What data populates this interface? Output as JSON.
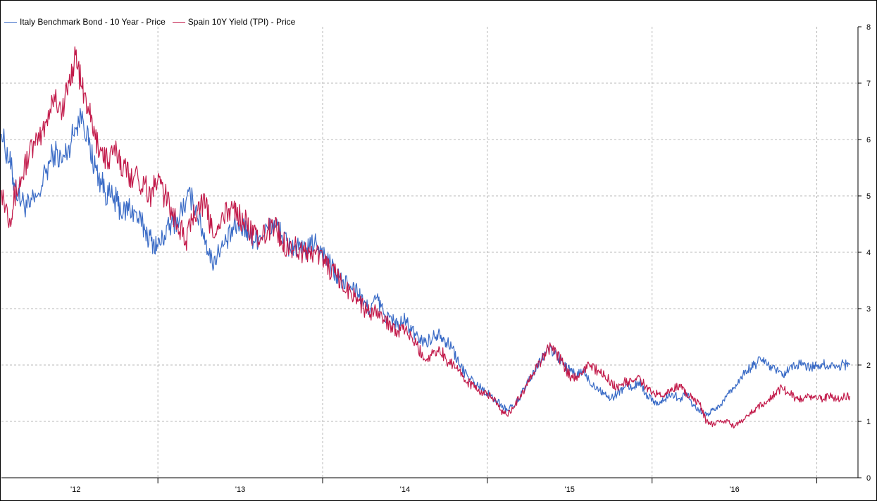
{
  "legend": {
    "italy_label": "Italy Benchmark Bond - 10 Year - Price",
    "spain_label": "Spain 10Y Yield (TPI) - Price"
  },
  "chart_data": {
    "type": "line",
    "title": "",
    "xlabel": "",
    "ylabel": "",
    "ylim": [
      0,
      8
    ],
    "yticks": [
      0,
      1,
      2,
      3,
      4,
      5,
      6,
      7,
      8
    ],
    "xlim": [
      2011.55,
      2016.75
    ],
    "xtick_labels": [
      "'12",
      "'13",
      "'14",
      "'15",
      "'16"
    ],
    "xtick_positions": [
      2012,
      2013,
      2014,
      2015,
      2016
    ],
    "grid": true,
    "legend_position": "top-left",
    "y_axis_side": "right",
    "series": [
      {
        "name": "Italy Benchmark Bond - 10 Year - Price",
        "color": "#3a6bc6",
        "x": [
          2011.55,
          2011.6,
          2011.63,
          2011.67,
          2011.72,
          2011.77,
          2011.82,
          2011.87,
          2011.92,
          2011.96,
          2012.0,
          2012.04,
          2012.08,
          2012.12,
          2012.16,
          2012.2,
          2012.25,
          2012.29,
          2012.33,
          2012.38,
          2012.42,
          2012.46,
          2012.5,
          2012.54,
          2012.58,
          2012.62,
          2012.67,
          2012.71,
          2012.75,
          2012.79,
          2012.83,
          2012.87,
          2012.92,
          2012.96,
          2013.0,
          2013.04,
          2013.08,
          2013.12,
          2013.17,
          2013.21,
          2013.25,
          2013.29,
          2013.33,
          2013.38,
          2013.42,
          2013.46,
          2013.5,
          2013.54,
          2013.58,
          2013.62,
          2013.67,
          2013.71,
          2013.75,
          2013.79,
          2013.83,
          2013.87,
          2013.92,
          2013.96,
          2014.0,
          2014.04,
          2014.08,
          2014.12,
          2014.17,
          2014.21,
          2014.25,
          2014.29,
          2014.33,
          2014.38,
          2014.42,
          2014.46,
          2014.5,
          2014.54,
          2014.58,
          2014.62,
          2014.67,
          2014.71,
          2014.75,
          2014.79,
          2014.83,
          2014.87,
          2014.92,
          2014.96,
          2015.0,
          2015.04,
          2015.08,
          2015.12,
          2015.17,
          2015.21,
          2015.25,
          2015.29,
          2015.33,
          2015.38,
          2015.42,
          2015.46,
          2015.5,
          2015.54,
          2015.58,
          2015.62,
          2015.67,
          2015.71,
          2015.75,
          2015.79,
          2015.83,
          2015.87,
          2015.92,
          2015.96,
          2016.0,
          2016.04,
          2016.08,
          2016.12,
          2016.17,
          2016.21,
          2016.25,
          2016.29,
          2016.33,
          2016.38,
          2016.42,
          2016.46,
          2016.5,
          2016.54,
          2016.58,
          2016.62,
          2016.67,
          2016.7
        ],
        "values": [
          6.1,
          5.6,
          5.2,
          4.9,
          4.8,
          5.0,
          5.4,
          5.8,
          5.6,
          5.9,
          6.2,
          6.5,
          5.9,
          5.5,
          5.2,
          5.0,
          4.9,
          4.7,
          4.8,
          4.6,
          4.4,
          4.2,
          4.1,
          4.3,
          4.5,
          4.6,
          4.9,
          5.0,
          4.6,
          4.2,
          3.8,
          4.0,
          4.2,
          4.4,
          4.5,
          4.4,
          4.2,
          4.3,
          4.4,
          4.5,
          4.3,
          4.1,
          4.1,
          4.0,
          4.1,
          4.2,
          4.0,
          3.8,
          3.6,
          3.5,
          3.4,
          3.3,
          3.1,
          3.0,
          3.2,
          2.9,
          2.8,
          2.7,
          2.8,
          2.6,
          2.5,
          2.4,
          2.5,
          2.6,
          2.4,
          2.3,
          2.0,
          1.8,
          1.7,
          1.6,
          1.5,
          1.4,
          1.3,
          1.2,
          1.3,
          1.5,
          1.7,
          1.9,
          2.1,
          2.3,
          2.2,
          2.0,
          1.9,
          1.8,
          1.9,
          1.7,
          1.6,
          1.5,
          1.4,
          1.5,
          1.6,
          1.6,
          1.7,
          1.5,
          1.4,
          1.3,
          1.4,
          1.5,
          1.4,
          1.5,
          1.3,
          1.2,
          1.1,
          1.2,
          1.3,
          1.5,
          1.6,
          1.8,
          1.9,
          2.0,
          2.1,
          2.0,
          1.9,
          1.8,
          1.9,
          2.0,
          2.0,
          1.95,
          2.0,
          2.0,
          2.0,
          2.0,
          2.0,
          2.0
        ],
        "style": "jagged"
      },
      {
        "name": "Spain 10Y Yield (TPI) - Price",
        "color": "#c21a4a",
        "x": [
          2011.55,
          2011.6,
          2011.63,
          2011.67,
          2011.72,
          2011.77,
          2011.82,
          2011.87,
          2011.92,
          2011.96,
          2012.0,
          2012.04,
          2012.08,
          2012.12,
          2012.16,
          2012.2,
          2012.25,
          2012.29,
          2012.33,
          2012.38,
          2012.42,
          2012.46,
          2012.5,
          2012.54,
          2012.58,
          2012.62,
          2012.67,
          2012.71,
          2012.75,
          2012.79,
          2012.83,
          2012.87,
          2012.92,
          2012.96,
          2013.0,
          2013.04,
          2013.08,
          2013.12,
          2013.17,
          2013.21,
          2013.25,
          2013.29,
          2013.33,
          2013.38,
          2013.42,
          2013.46,
          2013.5,
          2013.54,
          2013.58,
          2013.62,
          2013.67,
          2013.71,
          2013.75,
          2013.79,
          2013.83,
          2013.87,
          2013.92,
          2013.96,
          2014.0,
          2014.04,
          2014.08,
          2014.12,
          2014.17,
          2014.21,
          2014.25,
          2014.29,
          2014.33,
          2014.38,
          2014.42,
          2014.46,
          2014.5,
          2014.54,
          2014.58,
          2014.62,
          2014.67,
          2014.71,
          2014.75,
          2014.79,
          2014.83,
          2014.87,
          2014.92,
          2014.96,
          2015.0,
          2015.04,
          2015.08,
          2015.12,
          2015.17,
          2015.21,
          2015.25,
          2015.29,
          2015.33,
          2015.38,
          2015.42,
          2015.46,
          2015.5,
          2015.54,
          2015.58,
          2015.62,
          2015.67,
          2015.71,
          2015.75,
          2015.79,
          2015.83,
          2015.87,
          2015.92,
          2015.96,
          2016.0,
          2016.04,
          2016.08,
          2016.12,
          2016.17,
          2016.21,
          2016.25,
          2016.29,
          2016.33,
          2016.38,
          2016.42,
          2016.46,
          2016.5,
          2016.54,
          2016.58,
          2016.62,
          2016.67,
          2016.7
        ],
        "values": [
          5.1,
          4.6,
          5.0,
          5.3,
          5.8,
          5.9,
          6.3,
          6.8,
          6.5,
          7.0,
          7.5,
          6.9,
          6.5,
          6.0,
          5.8,
          5.6,
          5.8,
          5.5,
          5.4,
          5.3,
          5.2,
          5.0,
          5.3,
          5.0,
          4.8,
          4.5,
          4.2,
          4.6,
          4.9,
          4.8,
          4.4,
          4.5,
          4.7,
          4.8,
          4.6,
          4.5,
          4.3,
          4.2,
          4.4,
          4.5,
          4.2,
          4.1,
          4.1,
          4.0,
          4.0,
          4.0,
          3.9,
          3.7,
          3.6,
          3.4,
          3.3,
          3.2,
          3.0,
          2.9,
          3.0,
          2.8,
          2.7,
          2.6,
          2.6,
          2.5,
          2.3,
          2.1,
          2.2,
          2.3,
          2.1,
          2.0,
          1.9,
          1.7,
          1.6,
          1.5,
          1.5,
          1.4,
          1.2,
          1.1,
          1.3,
          1.5,
          1.7,
          1.9,
          2.1,
          2.3,
          2.2,
          2.0,
          1.8,
          1.8,
          1.9,
          2.0,
          1.9,
          1.8,
          1.7,
          1.6,
          1.7,
          1.7,
          1.8,
          1.6,
          1.5,
          1.5,
          1.5,
          1.6,
          1.6,
          1.5,
          1.4,
          1.3,
          1.0,
          0.95,
          1.0,
          1.0,
          0.9,
          1.0,
          1.1,
          1.2,
          1.3,
          1.4,
          1.5,
          1.6,
          1.5,
          1.4,
          1.4,
          1.45,
          1.4,
          1.4,
          1.45,
          1.4,
          1.45,
          1.45
        ],
        "style": "jagged"
      }
    ]
  }
}
